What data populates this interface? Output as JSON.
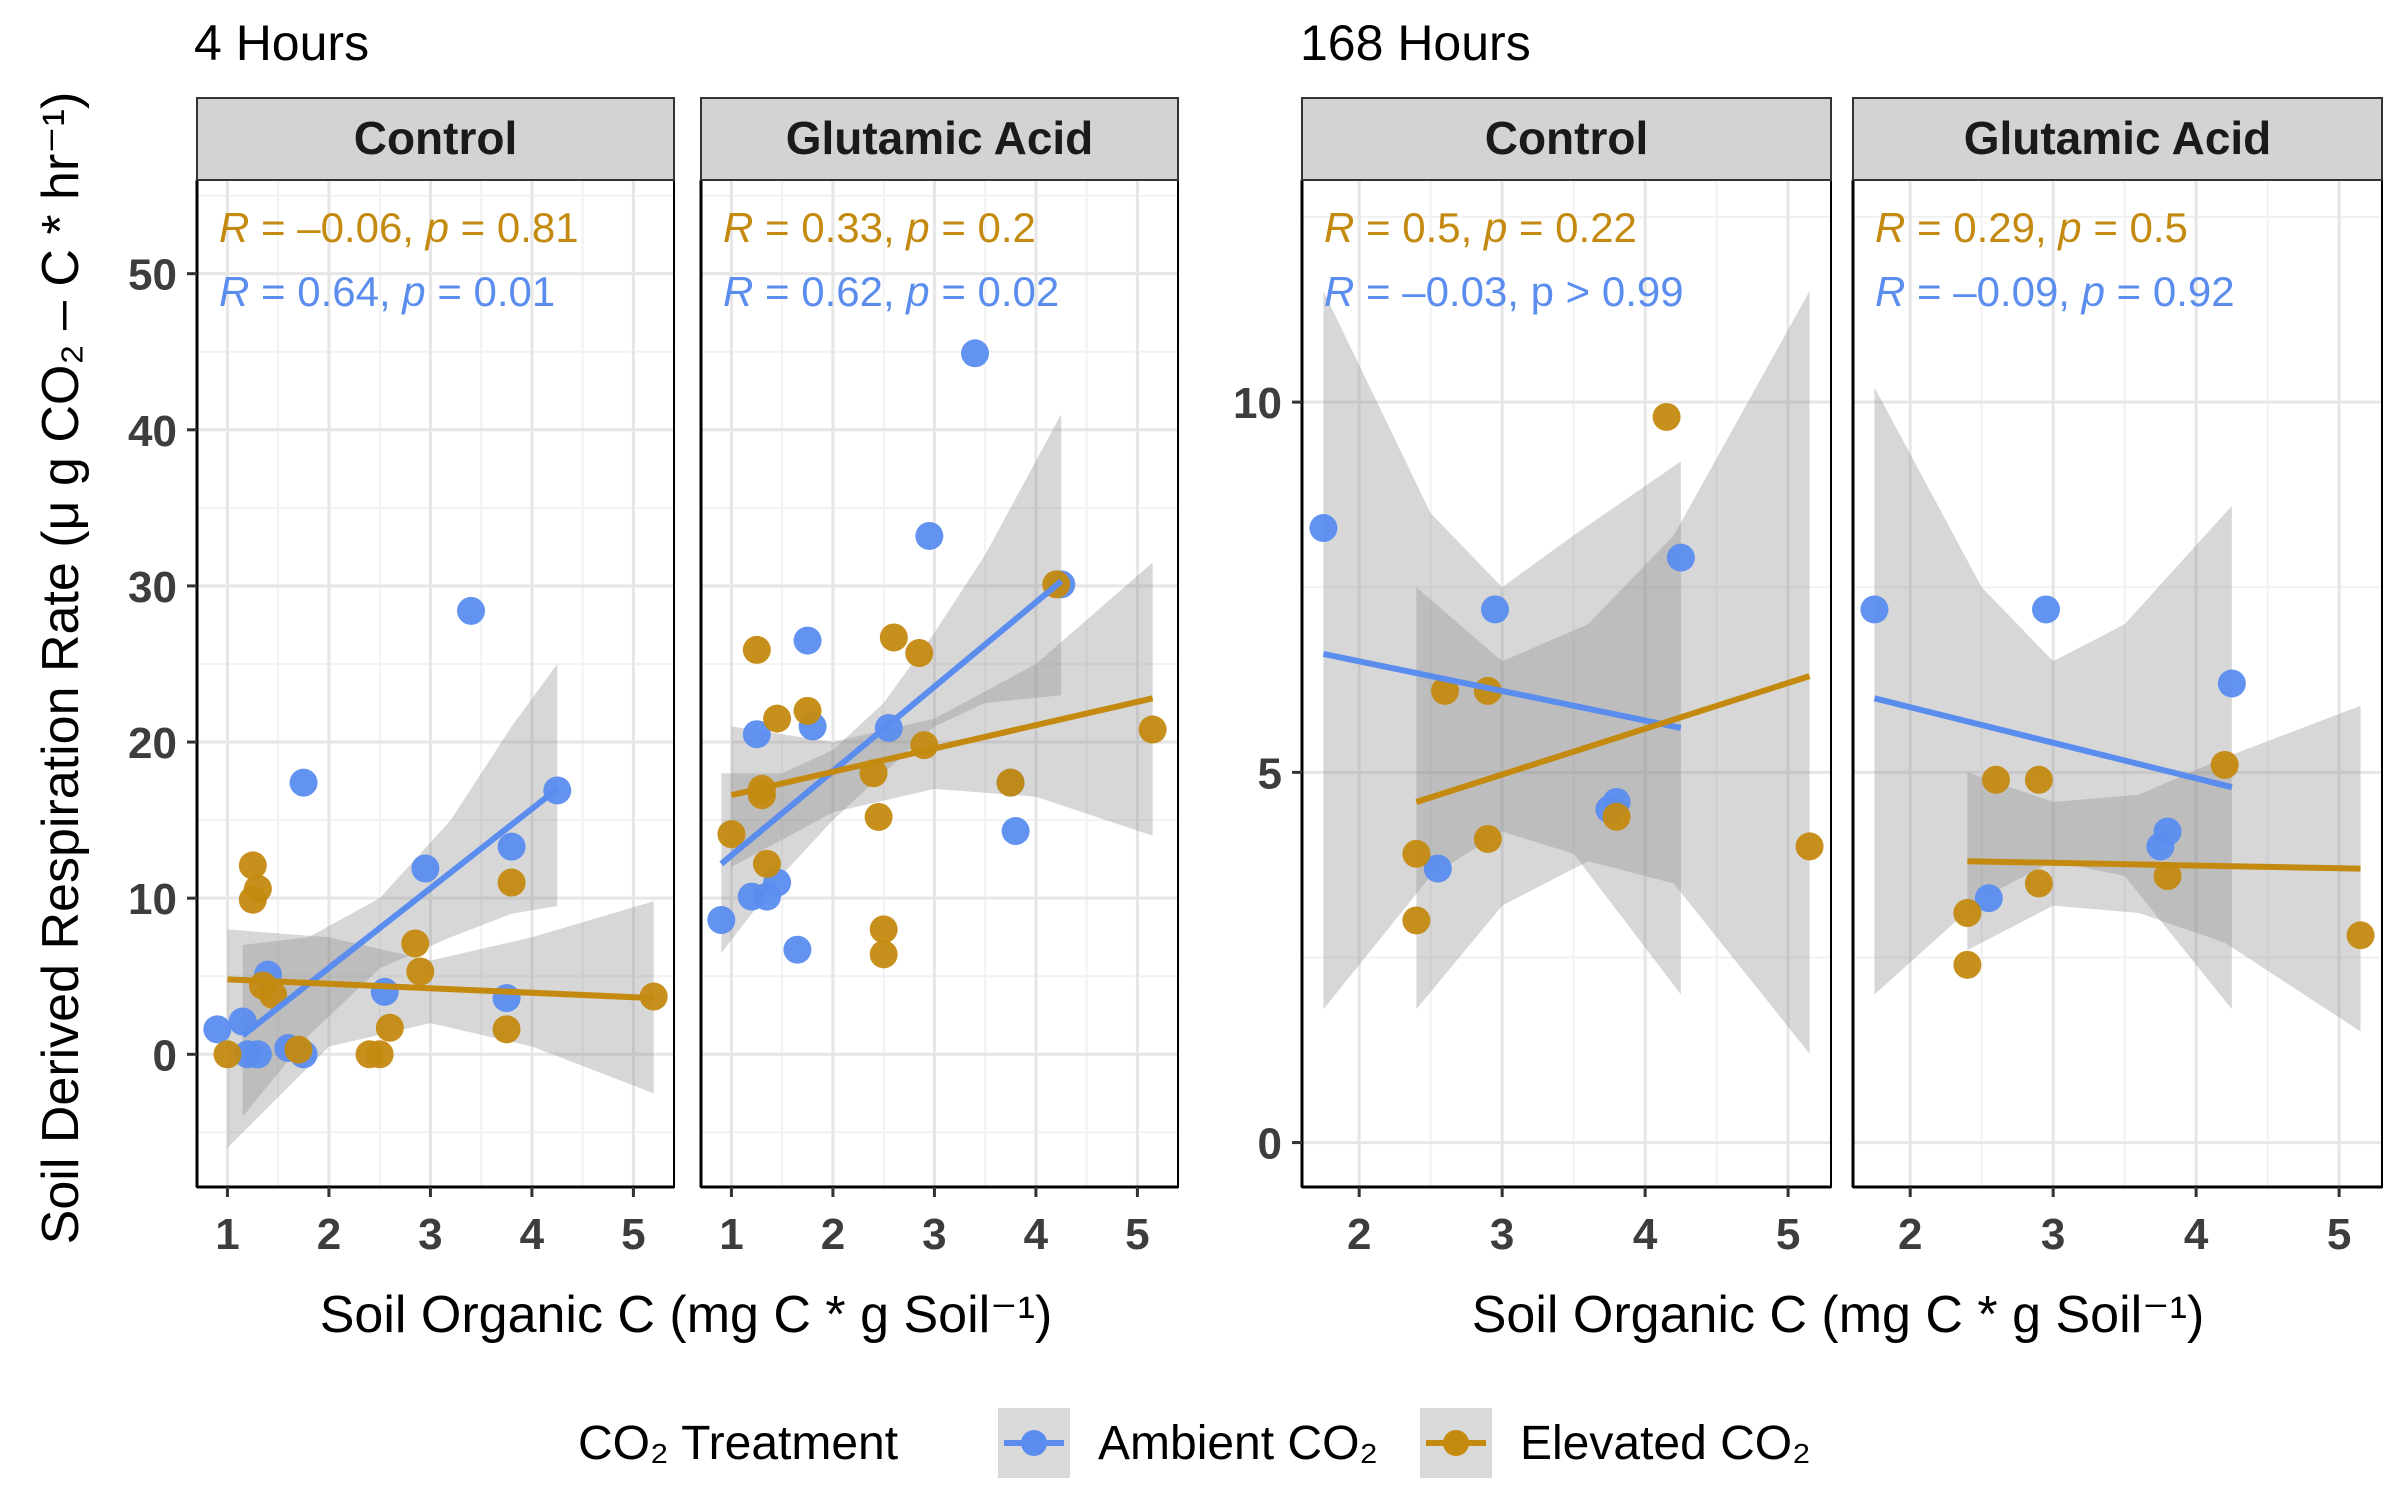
{
  "colors": {
    "ambient": "#5B8DEF",
    "elevated": "#C48A10",
    "strip_bg": "#D3D3D3",
    "ribbon": "#8c8c8c",
    "grid_major": "#e6e6e6",
    "grid_minor": "#f2f2f2"
  },
  "groups": [
    {
      "title": "4 Hours",
      "xlabel": "Soil Organic C (mg C * g Soil⁻¹)"
    },
    {
      "title": "168 Hours",
      "xlabel": "Soil Organic C (mg C * g Soil⁻¹)"
    }
  ],
  "ylabel": "Soil Derived Respiration Rate (μ g CO₂ – C * hr⁻¹)",
  "legend": {
    "title": "CO₂ Treatment",
    "items": [
      {
        "label": "Ambient CO₂",
        "color_key": "ambient"
      },
      {
        "label": "Elevated CO₂",
        "color_key": "elevated"
      }
    ]
  },
  "chart_data": [
    {
      "type": "scatter",
      "group": "4 Hours",
      "facet": "Control",
      "xlim": [
        0.7,
        5.4
      ],
      "ylim": [
        -8.5,
        56
      ],
      "xticks": [
        1,
        2,
        3,
        4,
        5
      ],
      "yticks": [
        0,
        10,
        20,
        30,
        40,
        50
      ],
      "stats": [
        {
          "series": "Elevated CO₂",
          "R": "–0.06",
          "p": "0.81",
          "p_op": "="
        },
        {
          "series": "Ambient CO₂",
          "R": "0.64",
          "p": "0.01",
          "p_op": "="
        }
      ],
      "series": [
        {
          "name": "Ambient CO₂",
          "x": [
            0.9,
            1.15,
            1.2,
            1.3,
            1.4,
            1.6,
            1.75,
            1.75,
            2.55,
            2.95,
            3.4,
            3.75,
            3.8,
            4.25
          ],
          "y": [
            1.6,
            2.1,
            0,
            0,
            5.1,
            0.4,
            17.4,
            0,
            4.0,
            11.9,
            28.4,
            3.6,
            13.3,
            16.9
          ],
          "fit": {
            "x": [
              1.15,
              4.25
            ],
            "y": [
              1.2,
              17.0
            ]
          },
          "band": {
            "x": [
              1.15,
              1.8,
              2.5,
              3.2,
              3.8,
              4.25
            ],
            "lower": [
              -4.0,
              1.2,
              5.5,
              7.5,
              9.0,
              9.5
            ],
            "upper": [
              7.0,
              7.5,
              10.0,
              15.0,
              21.0,
              25.0
            ]
          }
        },
        {
          "name": "Elevated CO₂",
          "x": [
            1.0,
            1.25,
            1.25,
            1.3,
            1.35,
            1.45,
            1.7,
            2.4,
            2.5,
            2.6,
            2.85,
            2.9,
            3.75,
            3.8,
            5.2
          ],
          "y": [
            0,
            12.1,
            9.9,
            10.6,
            4.4,
            3.8,
            0.3,
            0,
            0,
            1.7,
            7.1,
            5.3,
            1.6,
            11.0,
            3.7
          ],
          "fit": {
            "x": [
              1.0,
              5.2
            ],
            "y": [
              4.8,
              3.6
            ]
          },
          "band": {
            "x": [
              1.0,
              2.0,
              3.0,
              4.0,
              5.2
            ],
            "lower": [
              -6.0,
              0.5,
              2.0,
              0.5,
              -2.5
            ],
            "upper": [
              8.0,
              7.5,
              6.0,
              7.5,
              9.8
            ]
          }
        }
      ]
    },
    {
      "type": "scatter",
      "group": "4 Hours",
      "facet": "Glutamic Acid",
      "xlim": [
        0.7,
        5.4
      ],
      "ylim": [
        -8.5,
        56
      ],
      "xticks": [
        1,
        2,
        3,
        4,
        5
      ],
      "yticks": [
        0,
        10,
        20,
        30,
        40,
        50
      ],
      "stats": [
        {
          "series": "Elevated CO₂",
          "R": "0.33",
          "p": "0.2",
          "p_op": "="
        },
        {
          "series": "Ambient CO₂",
          "R": "0.62",
          "p": "0.02",
          "p_op": "="
        }
      ],
      "series": [
        {
          "name": "Ambient CO₂",
          "x": [
            0.9,
            1.2,
            1.25,
            1.35,
            1.45,
            1.65,
            1.75,
            1.8,
            2.55,
            2.95,
            3.4,
            3.75,
            3.8,
            4.25
          ],
          "y": [
            8.6,
            10.1,
            20.5,
            10.1,
            11.0,
            6.7,
            26.5,
            21.0,
            20.9,
            33.2,
            44.9,
            17.4,
            14.3,
            30.1
          ],
          "fit": {
            "x": [
              0.9,
              4.25
            ],
            "y": [
              12.2,
              30.3
            ]
          },
          "band": {
            "x": [
              0.9,
              1.5,
              2.0,
              2.5,
              3.0,
              3.5,
              4.25
            ],
            "lower": [
              6.5,
              11.5,
              15.0,
              18.0,
              21.0,
              22.5,
              23.0
            ],
            "upper": [
              18.0,
              18.0,
              19.5,
              22.5,
              27.0,
              32.0,
              41.0
            ]
          }
        },
        {
          "name": "Elevated CO₂",
          "x": [
            1.0,
            1.25,
            1.3,
            1.3,
            1.35,
            1.45,
            1.75,
            2.4,
            2.45,
            2.5,
            2.5,
            2.6,
            2.85,
            2.9,
            3.75,
            4.2,
            5.15
          ],
          "y": [
            14.1,
            25.9,
            16.6,
            17.0,
            12.2,
            21.5,
            22.0,
            18.0,
            15.2,
            8.0,
            6.4,
            26.7,
            25.7,
            19.8,
            17.4,
            30.1,
            20.8
          ],
          "fit": {
            "x": [
              1.0,
              5.15
            ],
            "y": [
              16.6,
              22.8
            ]
          },
          "band": {
            "x": [
              1.0,
              2.0,
              3.0,
              4.0,
              5.15
            ],
            "lower": [
              12.0,
              15.5,
              17.0,
              16.5,
              14.0
            ],
            "upper": [
              21.0,
              20.0,
              21.5,
              25.0,
              31.5
            ]
          }
        }
      ]
    },
    {
      "type": "scatter",
      "group": "168 Hours",
      "facet": "Control",
      "xlim": [
        1.6,
        5.3
      ],
      "ylim": [
        -0.6,
        13.0
      ],
      "xticks": [
        2,
        3,
        4,
        5
      ],
      "yticks": [
        0,
        5,
        10
      ],
      "stats": [
        {
          "series": "Elevated CO₂",
          "R": "0.5",
          "p": "0.22",
          "p_op": "="
        },
        {
          "series": "Ambient CO₂",
          "R": "–0.03",
          "p": "> 0.99",
          "p_op": ""
        }
      ],
      "series": [
        {
          "name": "Ambient CO₂",
          "x": [
            1.75,
            2.55,
            2.95,
            3.75,
            3.8,
            4.25
          ],
          "y": [
            8.3,
            3.7,
            7.2,
            4.5,
            4.6,
            7.9
          ],
          "fit": {
            "x": [
              1.75,
              4.25
            ],
            "y": [
              6.6,
              5.6
            ]
          },
          "band": {
            "x": [
              1.75,
              2.5,
              3.0,
              3.5,
              4.25
            ],
            "lower": [
              1.8,
              3.6,
              4.2,
              3.9,
              2.0
            ],
            "upper": [
              11.5,
              8.5,
              7.5,
              8.2,
              9.2
            ]
          }
        },
        {
          "name": "Elevated CO₂",
          "x": [
            2.4,
            2.4,
            2.6,
            2.9,
            2.9,
            3.8,
            4.15,
            5.15
          ],
          "y": [
            3.9,
            3.0,
            6.1,
            6.1,
            4.1,
            4.4,
            9.8,
            4.0
          ],
          "fit": {
            "x": [
              2.4,
              5.15
            ],
            "y": [
              4.6,
              6.3
            ]
          },
          "band": {
            "x": [
              2.4,
              3.0,
              3.6,
              4.2,
              5.15
            ],
            "lower": [
              1.8,
              3.2,
              3.8,
              3.5,
              1.2
            ],
            "upper": [
              7.5,
              6.5,
              7.0,
              8.2,
              11.5
            ]
          }
        }
      ]
    },
    {
      "type": "scatter",
      "group": "168 Hours",
      "facet": "Glutamic Acid",
      "xlim": [
        1.6,
        5.3
      ],
      "ylim": [
        -0.6,
        13.0
      ],
      "xticks": [
        2,
        3,
        4,
        5
      ],
      "yticks": [
        0,
        5,
        10
      ],
      "stats": [
        {
          "series": "Elevated CO₂",
          "R": "0.29",
          "p": "0.5",
          "p_op": "="
        },
        {
          "series": "Ambient CO₂",
          "R": "–0.09",
          "p": "0.92",
          "p_op": "="
        }
      ],
      "series": [
        {
          "name": "Ambient CO₂",
          "x": [
            1.75,
            2.55,
            2.95,
            3.75,
            3.8,
            4.25
          ],
          "y": [
            7.2,
            3.3,
            7.2,
            4.0,
            4.2,
            6.2
          ],
          "fit": {
            "x": [
              1.75,
              4.25
            ],
            "y": [
              6.0,
              4.8
            ]
          },
          "band": {
            "x": [
              1.75,
              2.5,
              3.0,
              3.5,
              4.25
            ],
            "lower": [
              2.0,
              3.3,
              3.8,
              3.6,
              1.8
            ],
            "upper": [
              10.2,
              7.5,
              6.5,
              7.0,
              8.6
            ]
          }
        },
        {
          "name": "Elevated CO₂",
          "x": [
            2.4,
            2.4,
            2.6,
            2.9,
            2.9,
            3.8,
            4.2,
            5.15
          ],
          "y": [
            3.1,
            2.4,
            4.9,
            4.9,
            3.5,
            3.6,
            5.1,
            2.8
          ],
          "fit": {
            "x": [
              2.4,
              5.15
            ],
            "y": [
              3.8,
              3.7
            ]
          },
          "band": {
            "x": [
              2.4,
              3.0,
              3.6,
              4.2,
              5.15
            ],
            "lower": [
              2.6,
              3.2,
              3.1,
              2.7,
              1.5
            ],
            "upper": [
              5.0,
              4.6,
              4.7,
              5.2,
              5.9
            ]
          }
        }
      ]
    }
  ]
}
